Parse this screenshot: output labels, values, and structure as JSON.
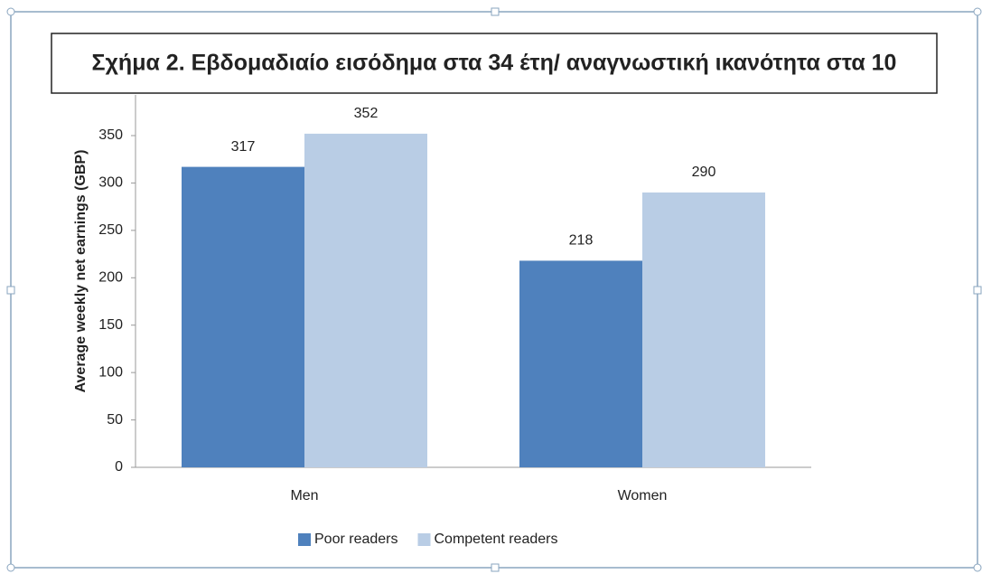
{
  "chart_data": {
    "type": "bar",
    "title": "Σχήμα 2. Εβδομαδιαίο εισόδημα στα 34 έτη/ αναγνωστική ικανότητα στα 10",
    "y_label": "Average weekly net earnings (GBP)",
    "categories": [
      "Men",
      "Women"
    ],
    "series": [
      {
        "name": "Poor readers",
        "color": "#4f81bd",
        "values": [
          317,
          218
        ]
      },
      {
        "name": "Competent readers",
        "color": "#b9cde5",
        "values": [
          352,
          290
        ]
      }
    ],
    "ylim": [
      0,
      350
    ],
    "yticks": [
      0,
      50,
      100,
      150,
      200,
      250,
      300,
      350
    ],
    "grid": false,
    "legend": "bottom"
  }
}
